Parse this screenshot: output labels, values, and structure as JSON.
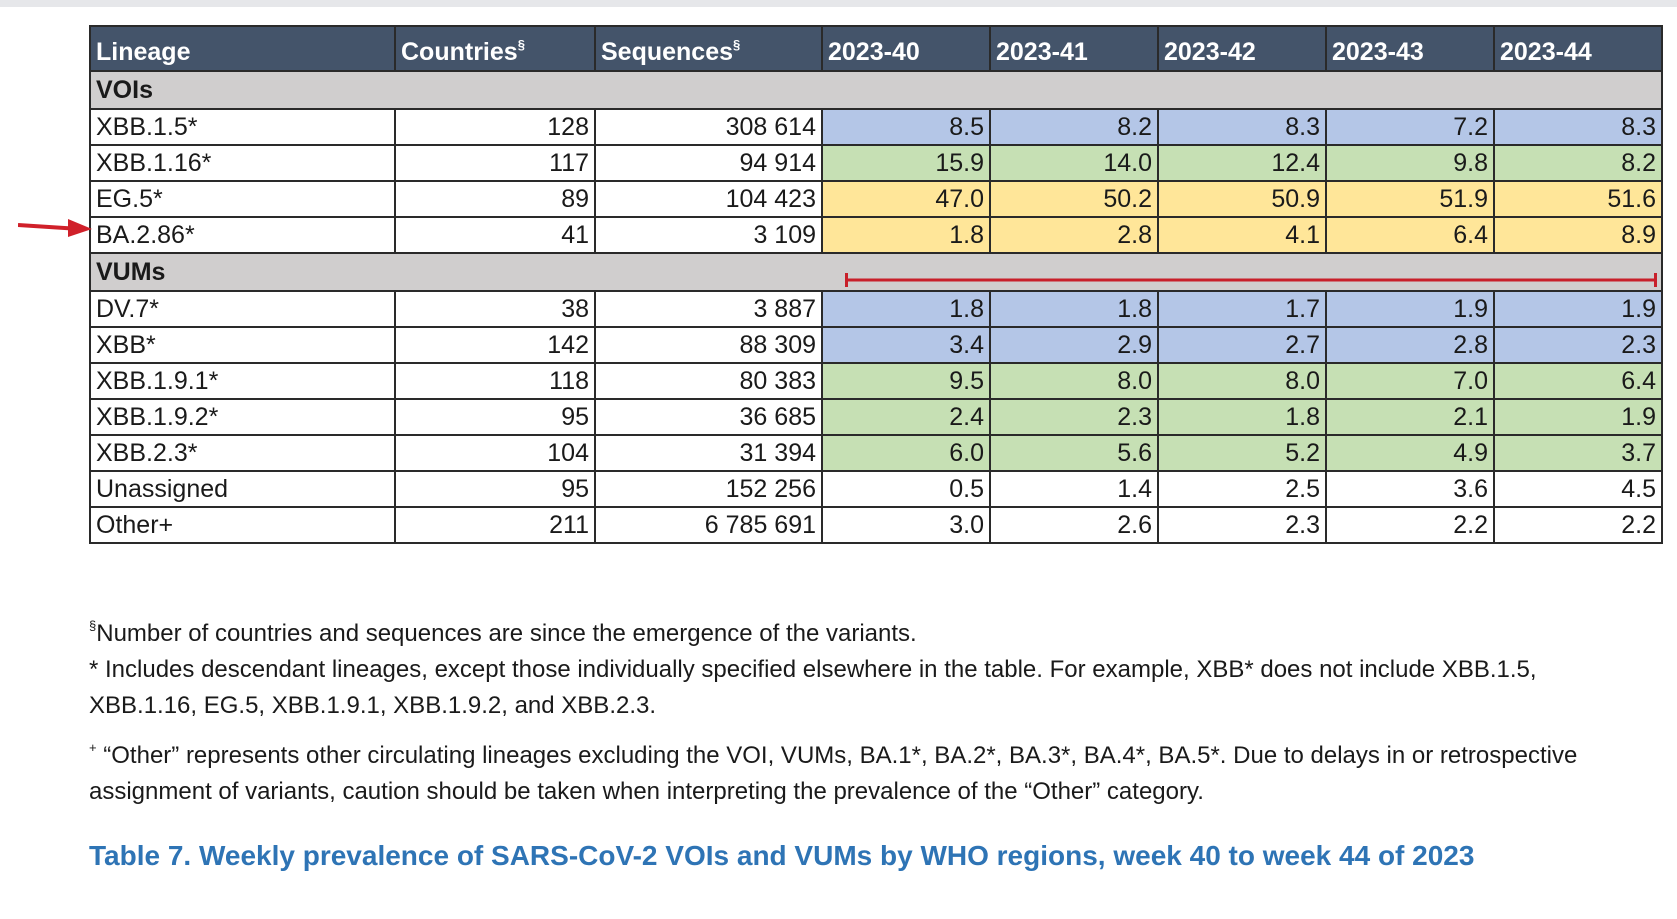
{
  "table": {
    "headers": {
      "lineage": "Lineage",
      "countries": "Countries",
      "countries_mark": "§",
      "sequences": "Sequences",
      "sequences_mark": "§",
      "weeks": [
        "2023-40",
        "2023-41",
        "2023-42",
        "2023-43",
        "2023-44"
      ]
    },
    "sections": [
      {
        "label": "VOIs",
        "rows": [
          {
            "lineage": "XBB.1.5*",
            "countries": "128",
            "sequences": "308 614",
            "values": [
              "8.5",
              "8.2",
              "8.3",
              "7.2",
              "8.3"
            ],
            "color": "#b4c6e7"
          },
          {
            "lineage": "XBB.1.16*",
            "countries": "117",
            "sequences": "94 914",
            "values": [
              "15.9",
              "14.0",
              "12.4",
              "9.8",
              "8.2"
            ],
            "color": "#c6e0b4"
          },
          {
            "lineage": "EG.5*",
            "countries": "89",
            "sequences": "104 423",
            "values": [
              "47.0",
              "50.2",
              "50.9",
              "51.9",
              "51.6"
            ],
            "color": "#ffe699"
          },
          {
            "lineage": "BA.2.86*",
            "countries": "41",
            "sequences": "3 109",
            "values": [
              "1.8",
              "2.8",
              "4.1",
              "6.4",
              "8.9"
            ],
            "color": "#ffe699"
          }
        ]
      },
      {
        "label": "VUMs",
        "rows": [
          {
            "lineage": "DV.7*",
            "countries": "38",
            "sequences": "3 887",
            "values": [
              "1.8",
              "1.8",
              "1.7",
              "1.9",
              "1.9"
            ],
            "color": "#b4c6e7"
          },
          {
            "lineage": "XBB*",
            "countries": "142",
            "sequences": "88 309",
            "values": [
              "3.4",
              "2.9",
              "2.7",
              "2.8",
              "2.3"
            ],
            "color": "#b4c6e7"
          },
          {
            "lineage": "XBB.1.9.1*",
            "countries": "118",
            "sequences": "80 383",
            "values": [
              "9.5",
              "8.0",
              "8.0",
              "7.0",
              "6.4"
            ],
            "color": "#c6e0b4"
          },
          {
            "lineage": "XBB.1.9.2*",
            "countries": "95",
            "sequences": "36 685",
            "values": [
              "2.4",
              "2.3",
              "1.8",
              "2.1",
              "1.9"
            ],
            "color": "#c6e0b4"
          },
          {
            "lineage": "XBB.2.3*",
            "countries": "104",
            "sequences": "31 394",
            "values": [
              "6.0",
              "5.6",
              "5.2",
              "4.9",
              "3.7"
            ],
            "color": "#c6e0b4"
          },
          {
            "lineage": "Unassigned",
            "countries": "95",
            "sequences": "152 256",
            "values": [
              "0.5",
              "1.4",
              "2.5",
              "3.6",
              "4.5"
            ],
            "color": "#ffffff"
          },
          {
            "lineage": "Other+",
            "countries": "211",
            "sequences": "6 785 691",
            "values": [
              "3.0",
              "2.6",
              "2.3",
              "2.2",
              "2.2"
            ],
            "color": "#ffffff"
          }
        ]
      }
    ]
  },
  "notes": {
    "n1_mark": "§",
    "n1_text": "Number of countries and sequences are since the emergence of the variants.",
    "n2_text": "* Includes descendant lineages, except those individually specified elsewhere in the table. For example, XBB* does not include XBB.1.5, XBB.1.16, EG.5, XBB.1.9.1, XBB.1.9.2, and XBB.2.3.",
    "n3_mark": "+",
    "n3_text": " “Other” represents other circulating lineages excluding the VOI, VUMs, BA.1*, BA.2*, BA.3*, BA.4*, BA.5*. Due to delays in or retrospective assignment of variants, caution should be taken when interpreting the prevalence of the “Other” category."
  },
  "caption": "Table 7. Weekly prevalence of SARS-CoV-2 VOIs and VUMs by WHO regions, week 40 to week 44 of 2023",
  "annotations": {
    "arrow_color": "#d0202a",
    "line_color": "#c8202a"
  }
}
